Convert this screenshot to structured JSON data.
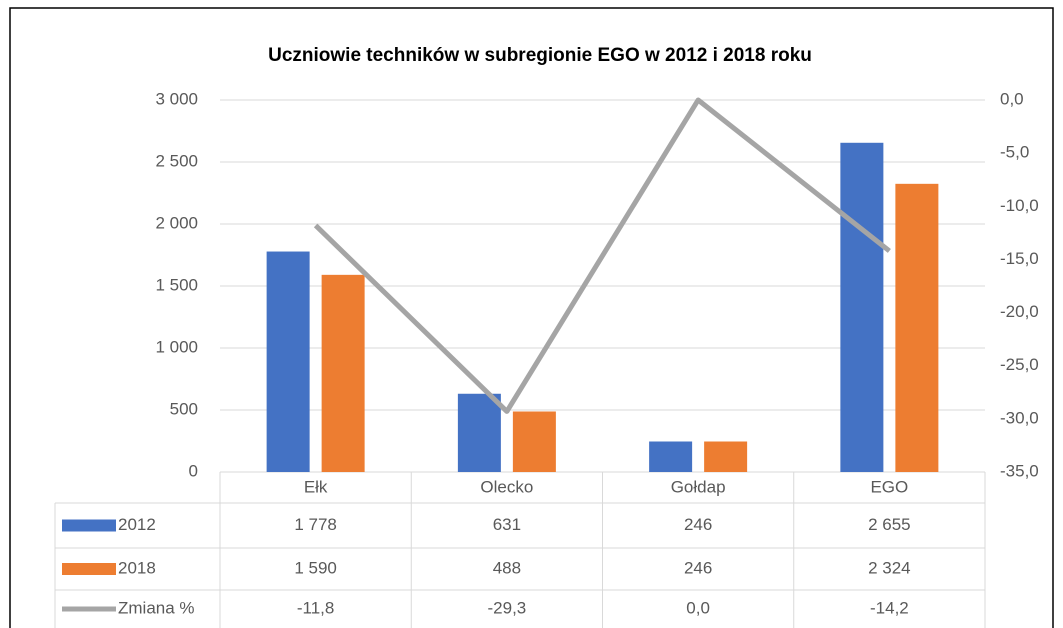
{
  "chart_data": {
    "type": "bar",
    "title": "Uczniowie techników w subregionie EGO w 2012 i 2018 roku",
    "categories": [
      "Ełk",
      "Olecko",
      "Gołdap",
      "EGO"
    ],
    "series": [
      {
        "name": "2012",
        "color": "#4472c4",
        "values": [
          1778,
          631,
          246,
          2655
        ],
        "value_labels": [
          "1 778",
          "631",
          "246",
          "2 655"
        ]
      },
      {
        "name": "2018",
        "color": "#ed7d31",
        "values": [
          1590,
          488,
          246,
          2324
        ],
        "value_labels": [
          "1 590",
          "488",
          "246",
          "2 324"
        ]
      },
      {
        "name": "Zmiana %",
        "color": "#a5a5a5",
        "type": "line",
        "axis": "y2",
        "values": [
          -11.8,
          -29.3,
          0.0,
          -14.2
        ],
        "value_labels": [
          "-11,8",
          "-29,3",
          "0,0",
          "-14,2"
        ]
      }
    ],
    "ylim": [
      0,
      3000
    ],
    "yticks": [
      0,
      500,
      {
        "value": 1000,
        "label": "1 000"
      },
      {
        "value": 1500,
        "label": "1 500"
      },
      {
        "value": 2000,
        "label": "2 000"
      },
      {
        "value": 2500,
        "label": "2 500"
      },
      {
        "value": 3000,
        "label": "3 000"
      }
    ],
    "y2lim": [
      -35,
      0
    ],
    "y2ticks": [
      {
        "value": -35,
        "label": "-35,0"
      },
      {
        "value": -30,
        "label": "-30,0"
      },
      {
        "value": -25,
        "label": "-25,0"
      },
      {
        "value": -20,
        "label": "-20,0"
      },
      {
        "value": -15,
        "label": "-15,0"
      },
      {
        "value": -10,
        "label": "-10,0"
      },
      {
        "value": -5,
        "label": "-5,0"
      },
      {
        "value": 0,
        "label": "0,0"
      }
    ],
    "grid": true
  }
}
